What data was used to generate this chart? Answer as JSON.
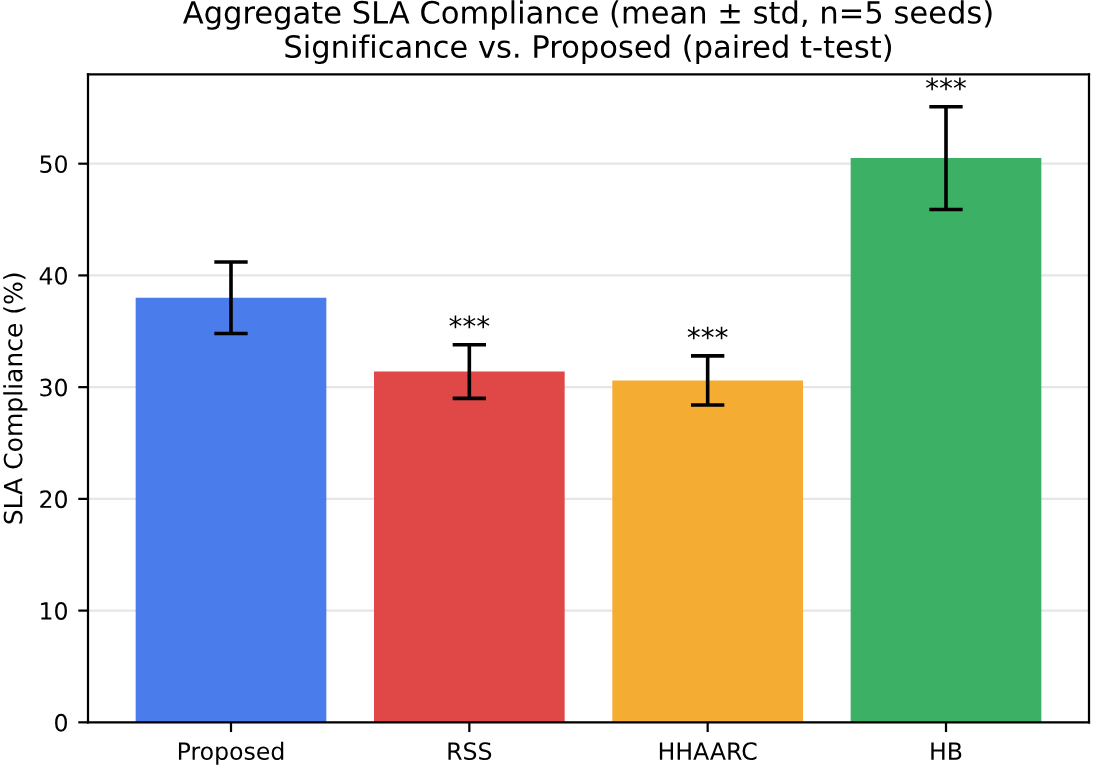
{
  "chart_data": {
    "type": "bar",
    "title": "Aggregate SLA Compliance (mean ± std, n=5 seeds)\nSignificance vs. Proposed (paired t-test)",
    "ylabel": "SLA Compliance (%)",
    "categories": [
      "Proposed",
      "RSS",
      "HHAARC",
      "HB"
    ],
    "values": [
      38.0,
      31.4,
      30.6,
      50.5
    ],
    "colors": [
      "#4a7cec",
      "#e04848",
      "#f5ac32",
      "#3cb065"
    ],
    "errors": [
      3.2,
      2.4,
      2.2,
      4.6
    ],
    "ylim": [
      0,
      58
    ],
    "yticks": [
      0,
      10,
      20,
      30,
      40,
      50
    ],
    "grid": "y",
    "annotations": [
      {
        "text": "***",
        "x": "RSS",
        "y": 33.8
      },
      {
        "text": "***",
        "x": "HHAARC",
        "y": 32.8
      },
      {
        "text": "***",
        "x": "HB",
        "y": 55.1
      }
    ]
  }
}
